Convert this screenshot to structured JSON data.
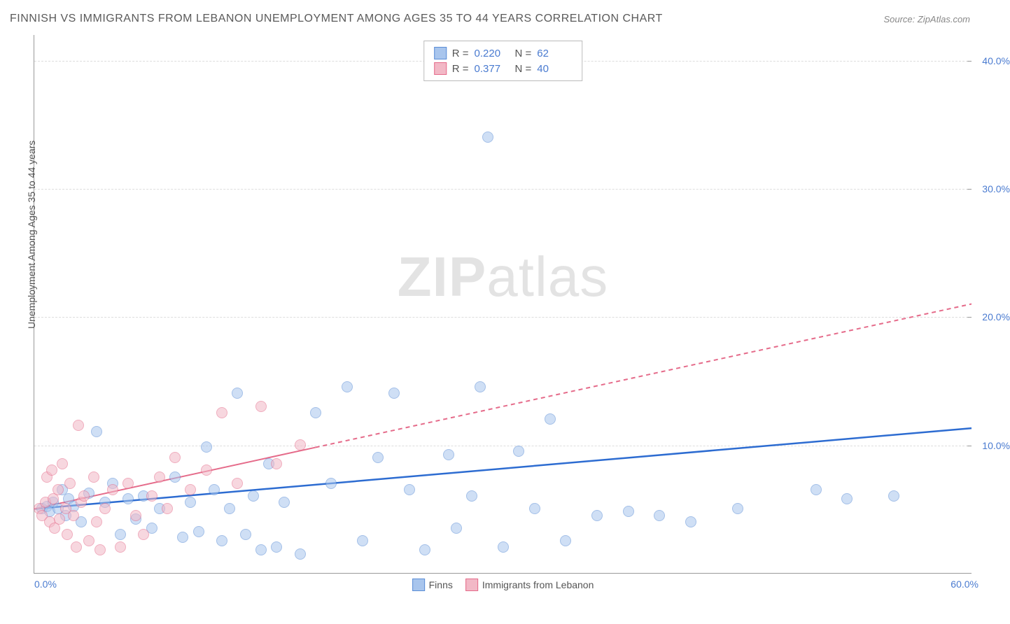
{
  "title": "FINNISH VS IMMIGRANTS FROM LEBANON UNEMPLOYMENT AMONG AGES 35 TO 44 YEARS CORRELATION CHART",
  "source": "Source: ZipAtlas.com",
  "y_axis_label": "Unemployment Among Ages 35 to 44 years",
  "watermark_bold": "ZIP",
  "watermark_light": "atlas",
  "chart": {
    "type": "scatter",
    "xlim": [
      0,
      60
    ],
    "ylim": [
      0,
      42
    ],
    "x_ticks": [
      {
        "value": 0,
        "label": "0.0%"
      },
      {
        "value": 60,
        "label": "60.0%"
      }
    ],
    "y_ticks": [
      {
        "value": 10,
        "label": "10.0%"
      },
      {
        "value": 20,
        "label": "20.0%"
      },
      {
        "value": 30,
        "label": "30.0%"
      },
      {
        "value": 40,
        "label": "40.0%"
      }
    ],
    "background_color": "#ffffff",
    "grid_color": "#dddddd",
    "axis_color": "#999999",
    "tick_label_color": "#4a7bd0",
    "marker_radius": 8,
    "marker_opacity": 0.55,
    "series": [
      {
        "name": "Finns",
        "legend_label": "Finns",
        "fill_color": "#a8c5ed",
        "stroke_color": "#5a8dd6",
        "stats": {
          "R": "0.220",
          "N": "62"
        },
        "trend": {
          "x1": 0,
          "y1": 5.0,
          "x2": 60,
          "y2": 11.3,
          "color": "#2d6cd1",
          "width": 2.5,
          "dash": ""
        },
        "points": [
          [
            0.5,
            5.0
          ],
          [
            0.8,
            5.2
          ],
          [
            1.0,
            4.8
          ],
          [
            1.2,
            5.5
          ],
          [
            1.5,
            5.0
          ],
          [
            1.8,
            6.5
          ],
          [
            2.0,
            4.5
          ],
          [
            2.2,
            5.8
          ],
          [
            2.5,
            5.2
          ],
          [
            3.0,
            4.0
          ],
          [
            3.5,
            6.2
          ],
          [
            4.0,
            11.0
          ],
          [
            4.5,
            5.5
          ],
          [
            5.0,
            7.0
          ],
          [
            5.5,
            3.0
          ],
          [
            6.0,
            5.8
          ],
          [
            6.5,
            4.2
          ],
          [
            7.0,
            6.0
          ],
          [
            7.5,
            3.5
          ],
          [
            8.0,
            5.0
          ],
          [
            9.0,
            7.5
          ],
          [
            9.5,
            2.8
          ],
          [
            10.0,
            5.5
          ],
          [
            10.5,
            3.2
          ],
          [
            11.0,
            9.8
          ],
          [
            11.5,
            6.5
          ],
          [
            12.0,
            2.5
          ],
          [
            12.5,
            5.0
          ],
          [
            13.0,
            14.0
          ],
          [
            13.5,
            3.0
          ],
          [
            14.0,
            6.0
          ],
          [
            14.5,
            1.8
          ],
          [
            15.0,
            8.5
          ],
          [
            15.5,
            2.0
          ],
          [
            16.0,
            5.5
          ],
          [
            17.0,
            1.5
          ],
          [
            18.0,
            12.5
          ],
          [
            19.0,
            7.0
          ],
          [
            20.0,
            14.5
          ],
          [
            21.0,
            2.5
          ],
          [
            22.0,
            9.0
          ],
          [
            23.0,
            14.0
          ],
          [
            24.0,
            6.5
          ],
          [
            25.0,
            1.8
          ],
          [
            26.5,
            9.2
          ],
          [
            27.0,
            3.5
          ],
          [
            28.0,
            6.0
          ],
          [
            28.5,
            14.5
          ],
          [
            29.0,
            34.0
          ],
          [
            30.0,
            2.0
          ],
          [
            31.0,
            9.5
          ],
          [
            32.0,
            5.0
          ],
          [
            33.0,
            12.0
          ],
          [
            34.0,
            2.5
          ],
          [
            36.0,
            4.5
          ],
          [
            38.0,
            4.8
          ],
          [
            40.0,
            4.5
          ],
          [
            42.0,
            4.0
          ],
          [
            45.0,
            5.0
          ],
          [
            50.0,
            6.5
          ],
          [
            52.0,
            5.8
          ],
          [
            55.0,
            6.0
          ]
        ]
      },
      {
        "name": "Immigrants from Lebanon",
        "legend_label": "Immigrants from Lebanon",
        "fill_color": "#f2b8c6",
        "stroke_color": "#e56b8a",
        "stats": {
          "R": "0.377",
          "N": "40"
        },
        "trend": {
          "x1": 0,
          "y1": 5.0,
          "x2": 60,
          "y2": 21.0,
          "color": "#e56b8a",
          "width": 2,
          "dash": "",
          "solid_until_x": 18,
          "dash_after": "6,5"
        },
        "points": [
          [
            0.3,
            5.0
          ],
          [
            0.5,
            4.5
          ],
          [
            0.7,
            5.5
          ],
          [
            0.8,
            7.5
          ],
          [
            1.0,
            4.0
          ],
          [
            1.1,
            8.0
          ],
          [
            1.2,
            5.8
          ],
          [
            1.3,
            3.5
          ],
          [
            1.5,
            6.5
          ],
          [
            1.6,
            4.2
          ],
          [
            1.8,
            8.5
          ],
          [
            2.0,
            5.0
          ],
          [
            2.1,
            3.0
          ],
          [
            2.3,
            7.0
          ],
          [
            2.5,
            4.5
          ],
          [
            2.7,
            2.0
          ],
          [
            2.8,
            11.5
          ],
          [
            3.0,
            5.5
          ],
          [
            3.2,
            6.0
          ],
          [
            3.5,
            2.5
          ],
          [
            3.8,
            7.5
          ],
          [
            4.0,
            4.0
          ],
          [
            4.2,
            1.8
          ],
          [
            4.5,
            5.0
          ],
          [
            5.0,
            6.5
          ],
          [
            5.5,
            2.0
          ],
          [
            6.0,
            7.0
          ],
          [
            6.5,
            4.5
          ],
          [
            7.0,
            3.0
          ],
          [
            7.5,
            6.0
          ],
          [
            8.0,
            7.5
          ],
          [
            8.5,
            5.0
          ],
          [
            9.0,
            9.0
          ],
          [
            10.0,
            6.5
          ],
          [
            11.0,
            8.0
          ],
          [
            12.0,
            12.5
          ],
          [
            13.0,
            7.0
          ],
          [
            14.5,
            13.0
          ],
          [
            15.5,
            8.5
          ],
          [
            17.0,
            10.0
          ]
        ]
      }
    ]
  },
  "legend_labels": {
    "r": "R =",
    "n": "N ="
  }
}
